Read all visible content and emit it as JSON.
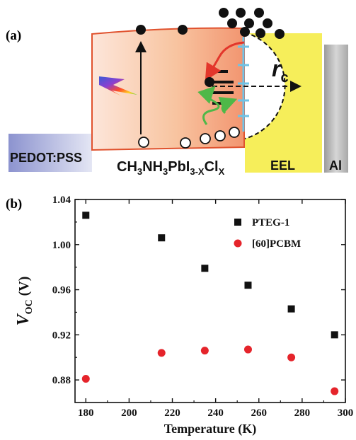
{
  "panels": {
    "a_label": "(a)",
    "b_label": "(b)"
  },
  "schematic": {
    "pedot_label": "PEDOT:PSS",
    "perovskite_label": {
      "main": "CH",
      "s1": "3",
      "m2": "NH",
      "s2": "3",
      "m3": "PbI",
      "s3": "3-X",
      "m4": "Cl",
      "s4": "X"
    },
    "eel_label": "EEL",
    "al_label": "Al",
    "rc_label": {
      "main": "r",
      "sub": "c"
    },
    "colors": {
      "perovskite_edge": "#e0522e",
      "eel": "#f6ee5a",
      "al": "#b3b3b3",
      "interface": "#6fc3e6",
      "arrow_red": "#e3362b",
      "arrow_green": "#4fb848"
    }
  },
  "chart_data": {
    "type": "scatter",
    "xlabel": "Temperature (K)",
    "ylabel": {
      "main": "V",
      "sub": "OC",
      "unit": " (V)"
    },
    "xlim": [
      175,
      300
    ],
    "ylim": [
      0.86,
      1.04
    ],
    "xticks": [
      "180",
      "200",
      "220",
      "240",
      "260",
      "280",
      "300"
    ],
    "yticks": [
      "0.88",
      "0.92",
      "0.96",
      "1.00",
      "1.04"
    ],
    "grid": false,
    "legend_position": "top-right",
    "series": [
      {
        "name": "PTEG-1",
        "marker": "square",
        "color": "#111111",
        "x": [
          180,
          215,
          235,
          255,
          275,
          295
        ],
        "y": [
          1.026,
          1.006,
          0.979,
          0.964,
          0.943,
          0.92
        ]
      },
      {
        "name": "[60]PCBM",
        "marker": "circle",
        "color": "#e5242b",
        "x": [
          180,
          215,
          235,
          255,
          275,
          295
        ],
        "y": [
          0.881,
          0.904,
          0.906,
          0.907,
          0.9,
          0.87
        ]
      }
    ]
  }
}
